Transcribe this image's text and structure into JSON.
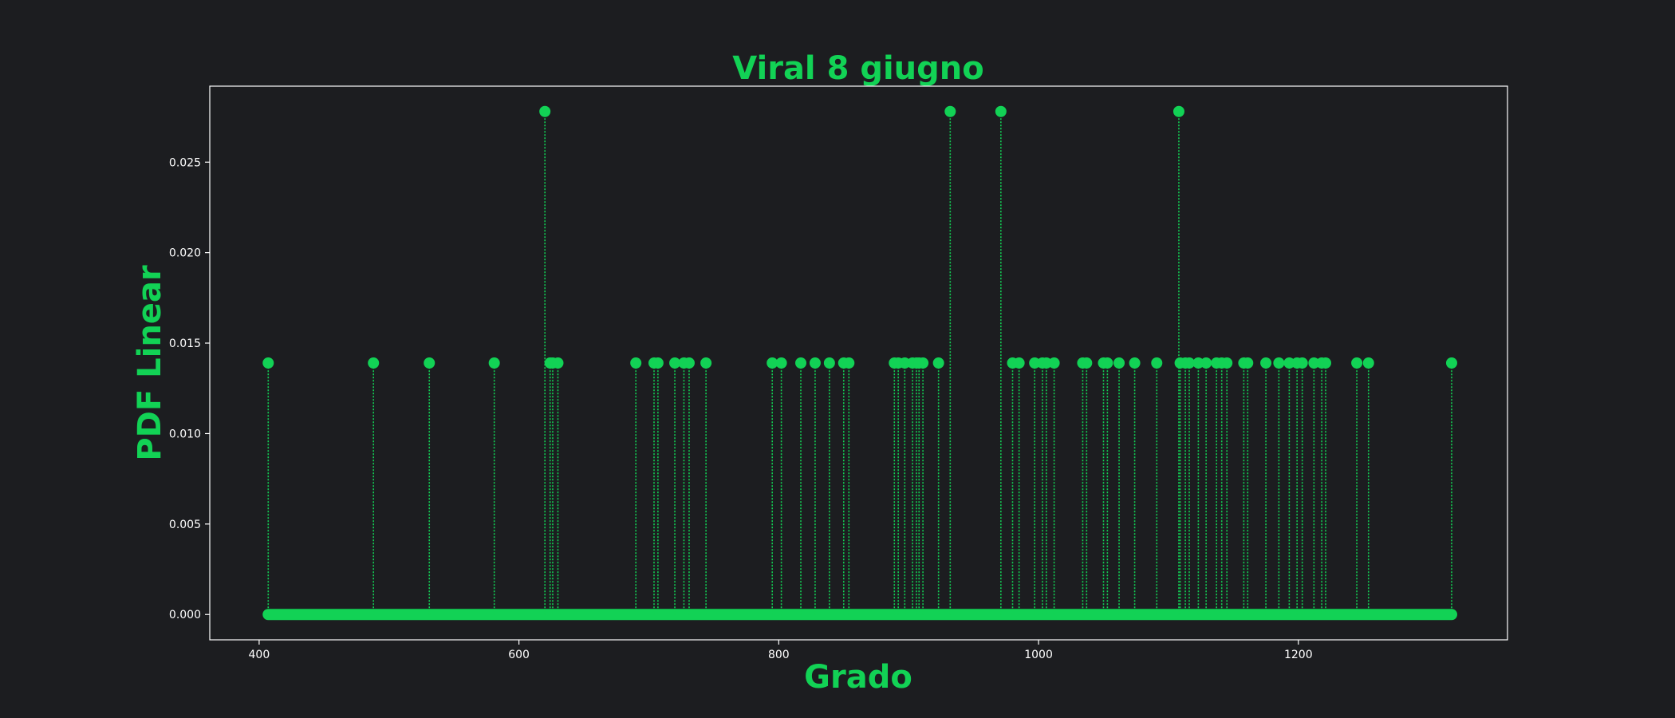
{
  "colors": {
    "background": "#1c1d20",
    "accent": "#12d255",
    "axis": "#ffffff",
    "tick_text": "#ffffff"
  },
  "chart_data": {
    "type": "scatter",
    "style": "stem",
    "title": "Viral 8 giugno",
    "xlabel": "Grado",
    "ylabel": "PDF Linear",
    "xlim": [
      362,
      1361
    ],
    "ylim": [
      -0.0014,
      0.0292
    ],
    "xticks": [
      400,
      600,
      800,
      1000,
      1200
    ],
    "yticks": [
      0.0,
      0.005,
      0.01,
      0.015,
      0.02,
      0.025
    ],
    "ytick_labels": [
      "0.000",
      "0.005",
      "0.010",
      "0.015",
      "0.020",
      "0.025"
    ],
    "grid": false,
    "legend": "none",
    "zero_baseline_range": [
      407,
      1318
    ],
    "series": [
      {
        "values_x": [
          407,
          488,
          531,
          581,
          620,
          624,
          626,
          630,
          690,
          704,
          707,
          720,
          727,
          731,
          744,
          795,
          802,
          817,
          828,
          839,
          850,
          854,
          889,
          892,
          897,
          903,
          906,
          908,
          911,
          923,
          932,
          971,
          980,
          985,
          997,
          1003,
          1006,
          1012,
          1034,
          1037,
          1050,
          1053,
          1062,
          1074,
          1091,
          1108,
          1109,
          1113,
          1116,
          1123,
          1129,
          1137,
          1141,
          1145,
          1158,
          1161,
          1175,
          1185,
          1193,
          1199,
          1203,
          1212,
          1218,
          1221,
          1245,
          1254,
          1318
        ],
        "values_y": [
          0.0139,
          0.0139,
          0.0139,
          0.0139,
          0.0278,
          0.0139,
          0.0139,
          0.0139,
          0.0139,
          0.0139,
          0.0139,
          0.0139,
          0.0139,
          0.0139,
          0.0139,
          0.0139,
          0.0139,
          0.0139,
          0.0139,
          0.0139,
          0.0139,
          0.0139,
          0.0139,
          0.0139,
          0.0139,
          0.0139,
          0.0139,
          0.0139,
          0.0139,
          0.0139,
          0.0278,
          0.0278,
          0.0139,
          0.0139,
          0.0139,
          0.0139,
          0.0139,
          0.0139,
          0.0139,
          0.0139,
          0.0139,
          0.0139,
          0.0139,
          0.0139,
          0.0139,
          0.0278,
          0.0139,
          0.0139,
          0.0139,
          0.0139,
          0.0139,
          0.0139,
          0.0139,
          0.0139,
          0.0139,
          0.0139,
          0.0139,
          0.0139,
          0.0139,
          0.0139,
          0.0139,
          0.0139,
          0.0139,
          0.0139,
          0.0139,
          0.0139,
          0.0139
        ]
      }
    ]
  }
}
